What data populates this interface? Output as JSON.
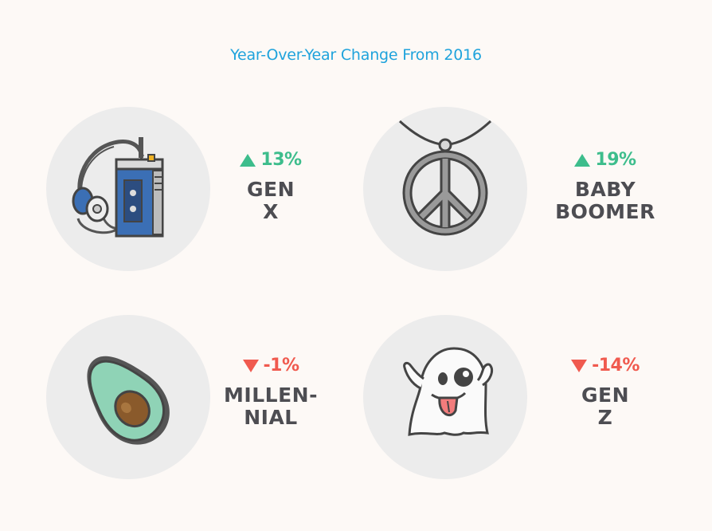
{
  "title": "Year-Over-Year Change From 2016",
  "colors": {
    "title": "#1fa3dc",
    "up": "#3dbd8c",
    "down": "#f05a4f",
    "label": "#4d4d52",
    "circle": "#ececec"
  },
  "items": [
    {
      "change": "13%",
      "direction": "up",
      "label_line1": "GEN",
      "label_line2": "X",
      "icon": "walkman-icon"
    },
    {
      "change": "19%",
      "direction": "up",
      "label_line1": "BABY",
      "label_line2": "BOOMER",
      "icon": "peace-necklace-icon"
    },
    {
      "change": "-1%",
      "direction": "down",
      "label_line1": "MILLEN-",
      "label_line2": "NIAL",
      "icon": "avocado-icon"
    },
    {
      "change": "-14%",
      "direction": "down",
      "label_line1": "GEN",
      "label_line2": "Z",
      "icon": "ghost-icon"
    }
  ]
}
